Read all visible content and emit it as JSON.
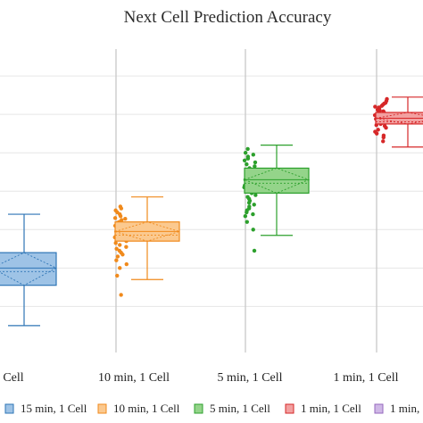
{
  "chart_data": {
    "type": "box",
    "title": "Next Cell Prediction Accuracy",
    "xlabel": "",
    "ylabel": "",
    "grid": true,
    "legend_position": "bottom",
    "categories": [
      "15 min, 1 Cell",
      "10 min, 1 Cell",
      "5 min, 1 Cell",
      "1 min, 1 Cell"
    ],
    "visible_category_labels": [
      "Cell",
      "10 min, 1 Cell",
      "5 min, 1 Cell",
      "1 min, 1 Cell"
    ],
    "legend": [
      "15 min, 1 Cell",
      "10 min, 1 Cell",
      "5 min, 1 Cell",
      "1 min, 1 Cell",
      "1 min, 1 ..."
    ],
    "colors": [
      "#2e75b6",
      "#f08a1c",
      "#2ca02c",
      "#d62728",
      "#9467bd"
    ],
    "fills": [
      "#9ec3e6",
      "#fbc98f",
      "#94d48a",
      "#f2a0a0",
      "#cfb8e6"
    ],
    "series": [
      {
        "name": "15 min, 1 Cell",
        "whisker_low": 0.45,
        "q1": 0.555,
        "median": 0.6,
        "mean": 0.6,
        "q3": 0.64,
        "whisker_high": 0.74,
        "points": []
      },
      {
        "name": "10 min, 1 Cell",
        "whisker_low": 0.57,
        "q1": 0.67,
        "median": 0.695,
        "mean": 0.695,
        "q3": 0.72,
        "whisker_high": 0.785,
        "points": [
          0.76,
          0.755,
          0.75,
          0.745,
          0.74,
          0.735,
          0.73,
          0.728,
          0.725,
          0.72,
          0.718,
          0.715,
          0.712,
          0.71,
          0.705,
          0.7,
          0.698,
          0.695,
          0.69,
          0.688,
          0.685,
          0.68,
          0.675,
          0.67,
          0.665,
          0.66,
          0.655,
          0.65,
          0.645,
          0.64,
          0.635,
          0.63,
          0.62,
          0.61,
          0.6,
          0.58,
          0.53
        ]
      },
      {
        "name": "5 min, 1 Cell",
        "whisker_low": 0.685,
        "q1": 0.795,
        "median": 0.83,
        "mean": 0.83,
        "q3": 0.86,
        "whisker_high": 0.92,
        "points": [
          0.91,
          0.9,
          0.895,
          0.89,
          0.885,
          0.88,
          0.875,
          0.87,
          0.865,
          0.86,
          0.855,
          0.85,
          0.845,
          0.84,
          0.835,
          0.83,
          0.825,
          0.82,
          0.815,
          0.81,
          0.805,
          0.8,
          0.795,
          0.79,
          0.785,
          0.78,
          0.775,
          0.77,
          0.765,
          0.76,
          0.755,
          0.75,
          0.745,
          0.74,
          0.735,
          0.72,
          0.7,
          0.645
        ]
      },
      {
        "name": "1 min, 1 Cell",
        "whisker_low": 0.915,
        "q1": 0.975,
        "median": 0.99,
        "mean": 0.99,
        "q3": 1.005,
        "whisker_high": 1.045,
        "points": [
          1.04,
          1.035,
          1.03,
          1.028,
          1.025,
          1.022,
          1.02,
          1.018,
          1.015,
          1.012,
          1.01,
          1.008,
          1.005,
          1.003,
          1.0,
          0.998,
          0.995,
          0.992,
          0.99,
          0.988,
          0.985,
          0.982,
          0.98,
          0.978,
          0.975,
          0.972,
          0.97,
          0.965,
          0.96,
          0.955,
          0.95,
          0.945,
          0.94,
          0.93
        ]
      }
    ],
    "ylim": [
      0.38,
      1.17
    ]
  }
}
